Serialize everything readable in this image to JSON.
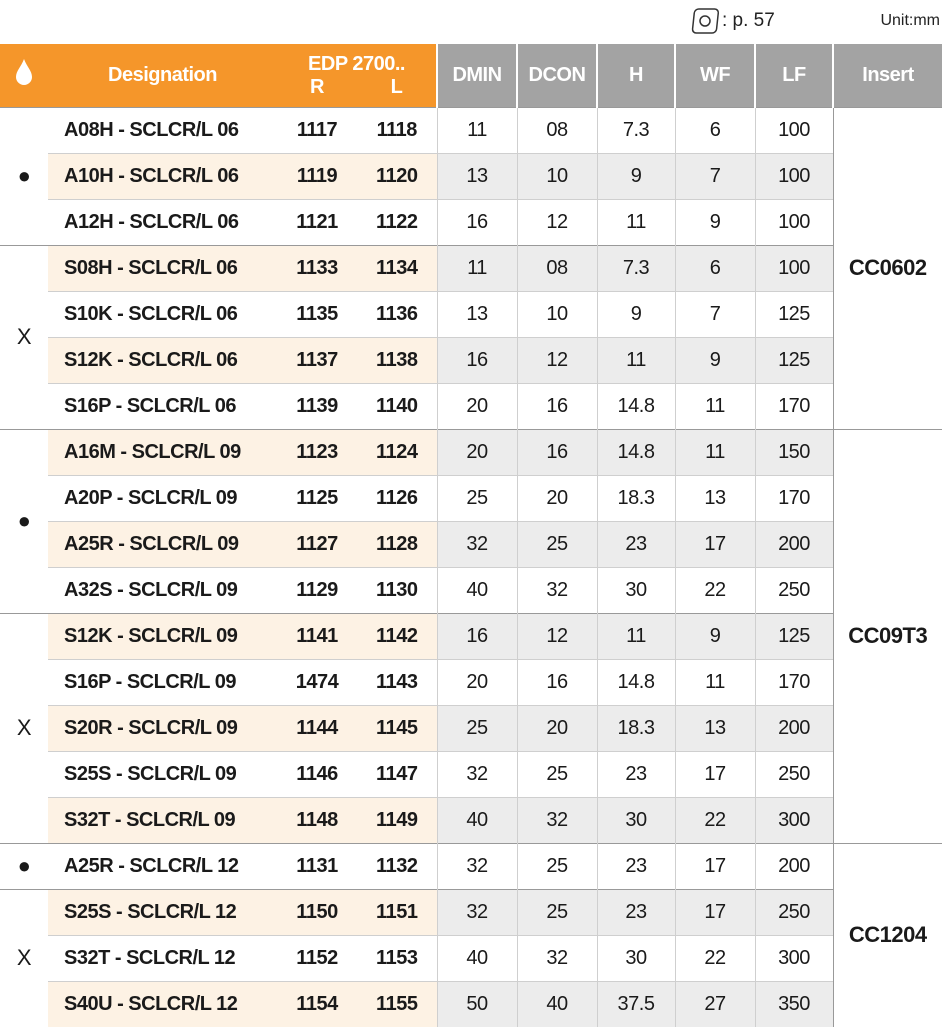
{
  "header": {
    "page_ref": ": p. 57",
    "unit": "Unit:mm"
  },
  "table": {
    "columns": {
      "designation": "Designation",
      "edp": "EDP 2700..",
      "r": "R",
      "l": "L",
      "dmin": "DMIN",
      "dcon": "DCON",
      "h": "H",
      "wf": "WF",
      "lf": "LF",
      "insert": "Insert"
    },
    "groups": [
      {
        "insert": "CC0602",
        "subgroups": [
          {
            "mark": "●",
            "rows": [
              [
                "A08H - SCLCR/L 06",
                "1117",
                "1118",
                "11",
                "08",
                "7.3",
                "6",
                "100"
              ],
              [
                "A10H - SCLCR/L 06",
                "1119",
                "1120",
                "13",
                "10",
                "9",
                "7",
                "100"
              ],
              [
                "A12H - SCLCR/L 06",
                "1121",
                "1122",
                "16",
                "12",
                "11",
                "9",
                "100"
              ]
            ]
          },
          {
            "mark": "X",
            "rows": [
              [
                "S08H - SCLCR/L 06",
                "1133",
                "1134",
                "11",
                "08",
                "7.3",
                "6",
                "100"
              ],
              [
                "S10K - SCLCR/L 06",
                "1135",
                "1136",
                "13",
                "10",
                "9",
                "7",
                "125"
              ],
              [
                "S12K - SCLCR/L 06",
                "1137",
                "1138",
                "16",
                "12",
                "11",
                "9",
                "125"
              ],
              [
                "S16P - SCLCR/L 06",
                "1139",
                "1140",
                "20",
                "16",
                "14.8",
                "11",
                "170"
              ]
            ]
          }
        ]
      },
      {
        "insert": "CC09T3",
        "subgroups": [
          {
            "mark": "●",
            "rows": [
              [
                "A16M - SCLCR/L 09",
                "1123",
                "1124",
                "20",
                "16",
                "14.8",
                "11",
                "150"
              ],
              [
                "A20P - SCLCR/L 09",
                "1125",
                "1126",
                "25",
                "20",
                "18.3",
                "13",
                "170"
              ],
              [
                "A25R - SCLCR/L 09",
                "1127",
                "1128",
                "32",
                "25",
                "23",
                "17",
                "200"
              ],
              [
                "A32S - SCLCR/L 09",
                "1129",
                "1130",
                "40",
                "32",
                "30",
                "22",
                "250"
              ]
            ]
          },
          {
            "mark": "X",
            "rows": [
              [
                "S12K - SCLCR/L 09",
                "1141",
                "1142",
                "16",
                "12",
                "11",
                "9",
                "125"
              ],
              [
                "S16P - SCLCR/L 09",
                "1474",
                "1143",
                "20",
                "16",
                "14.8",
                "11",
                "170"
              ],
              [
                "S20R - SCLCR/L 09",
                "1144",
                "1145",
                "25",
                "20",
                "18.3",
                "13",
                "200"
              ],
              [
                "S25S - SCLCR/L 09",
                "1146",
                "1147",
                "32",
                "25",
                "23",
                "17",
                "250"
              ],
              [
                "S32T - SCLCR/L 09",
                "1148",
                "1149",
                "40",
                "32",
                "30",
                "22",
                "300"
              ]
            ]
          }
        ]
      },
      {
        "insert": "CC1204",
        "subgroups": [
          {
            "mark": "●",
            "rows": [
              [
                "A25R - SCLCR/L 12",
                "1131",
                "1132",
                "32",
                "25",
                "23",
                "17",
                "200"
              ]
            ]
          },
          {
            "mark": "X",
            "rows": [
              [
                "S25S - SCLCR/L 12",
                "1150",
                "1151",
                "32",
                "25",
                "23",
                "17",
                "250"
              ],
              [
                "S32T - SCLCR/L 12",
                "1152",
                "1153",
                "40",
                "32",
                "30",
                "22",
                "300"
              ],
              [
                "S40U - SCLCR/L 12",
                "1154",
                "1155",
                "50",
                "40",
                "37.5",
                "27",
                "350"
              ]
            ]
          }
        ]
      }
    ]
  }
}
